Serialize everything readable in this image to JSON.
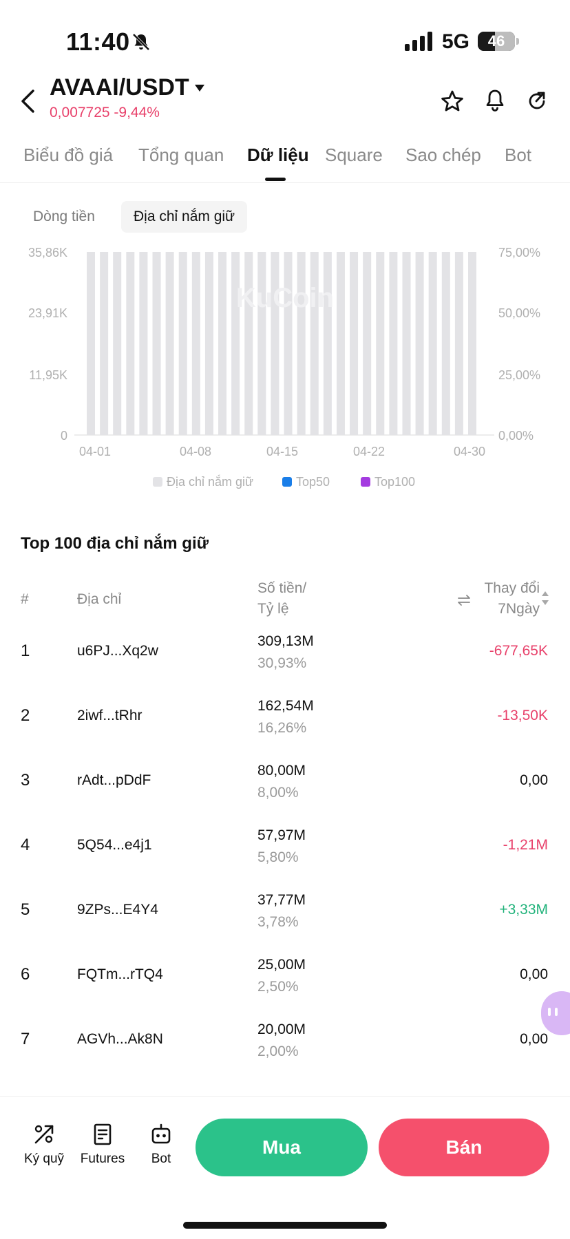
{
  "status_bar": {
    "time": "11:40",
    "network": "5G",
    "battery": "46",
    "battery_level": 0.46
  },
  "header": {
    "pair": "AVAAI/USDT",
    "price_change": "0,007725 -9,44%"
  },
  "tabs": [
    {
      "label": "Biểu đồ giá"
    },
    {
      "label": "Tổng quan"
    },
    {
      "label": "Dữ liệu"
    },
    {
      "label": "Square"
    },
    {
      "label": "Sao chép"
    },
    {
      "label": "Bot"
    }
  ],
  "subtabs": [
    {
      "label": "Dòng tiền"
    },
    {
      "label": "Địa chỉ nắm giữ"
    }
  ],
  "chart_data": {
    "type": "bar",
    "y_left_ticks": [
      "0",
      "11,95K",
      "23,91K",
      "35,86K"
    ],
    "y_right_ticks": [
      "0,00%",
      "25,00%",
      "50,00%",
      "75,00%"
    ],
    "x_ticks": [
      "04-01",
      "04-08",
      "04-15",
      "04-22",
      "04-30"
    ],
    "ylim_left": [
      0,
      35860
    ],
    "ylim_right": [
      0,
      75
    ],
    "watermark": "KuCoin",
    "legend_position": "bottom",
    "series": [
      {
        "name": "Địa chỉ nắm giữ",
        "color": "#e3e3e6",
        "values": [
          35860,
          35860,
          35860,
          35860,
          35860,
          35860,
          35860,
          35860,
          35860,
          35860,
          35860,
          35860,
          35860,
          35860,
          35860,
          35860,
          35860,
          35860,
          35860,
          35860,
          35860,
          35860,
          35860,
          35860,
          35860,
          35860,
          35860,
          35860,
          35860,
          35860
        ]
      },
      {
        "name": "Top50",
        "color": "#1a7ee8",
        "values": []
      },
      {
        "name": "Top100",
        "color": "#a43be0",
        "values": []
      }
    ]
  },
  "table": {
    "title": "Top 100 địa chỉ nắm giữ",
    "headers": {
      "rank": "#",
      "address": "Địa chỉ",
      "amount_line1": "Số tiền/",
      "amount_line2": "Tỷ lệ",
      "change_line1": "Thay đổi",
      "change_line2": "7Ngày"
    },
    "rows": [
      {
        "rank": "1",
        "address": "u6PJ...Xq2w",
        "amount": "309,13M",
        "ratio": "30,93%",
        "change": "-677,65K",
        "trend": "down"
      },
      {
        "rank": "2",
        "address": "2iwf...tRhr",
        "amount": "162,54M",
        "ratio": "16,26%",
        "change": "-13,50K",
        "trend": "down"
      },
      {
        "rank": "3",
        "address": "rAdt...pDdF",
        "amount": "80,00M",
        "ratio": "8,00%",
        "change": "0,00",
        "trend": "flat"
      },
      {
        "rank": "4",
        "address": "5Q54...e4j1",
        "amount": "57,97M",
        "ratio": "5,80%",
        "change": "-1,21M",
        "trend": "down"
      },
      {
        "rank": "5",
        "address": "9ZPs...E4Y4",
        "amount": "37,77M",
        "ratio": "3,78%",
        "change": "+3,33M",
        "trend": "up"
      },
      {
        "rank": "6",
        "address": "FQTm...rTQ4",
        "amount": "25,00M",
        "ratio": "2,50%",
        "change": "0,00",
        "trend": "flat"
      },
      {
        "rank": "7",
        "address": "AGVh...Ak8N",
        "amount": "20,00M",
        "ratio": "2,00%",
        "change": "0,00",
        "trend": "flat"
      }
    ]
  },
  "colors": {
    "down": "#e8406a",
    "up": "#20b27a",
    "flat": "#111111"
  },
  "bottom_bar": {
    "items": [
      {
        "label": "Ký quỹ",
        "icon": "margin-icon"
      },
      {
        "label": "Futures",
        "icon": "futures-icon"
      },
      {
        "label": "Bot",
        "icon": "bot-icon"
      }
    ],
    "buy_label": "Mua",
    "sell_label": "Bán"
  }
}
